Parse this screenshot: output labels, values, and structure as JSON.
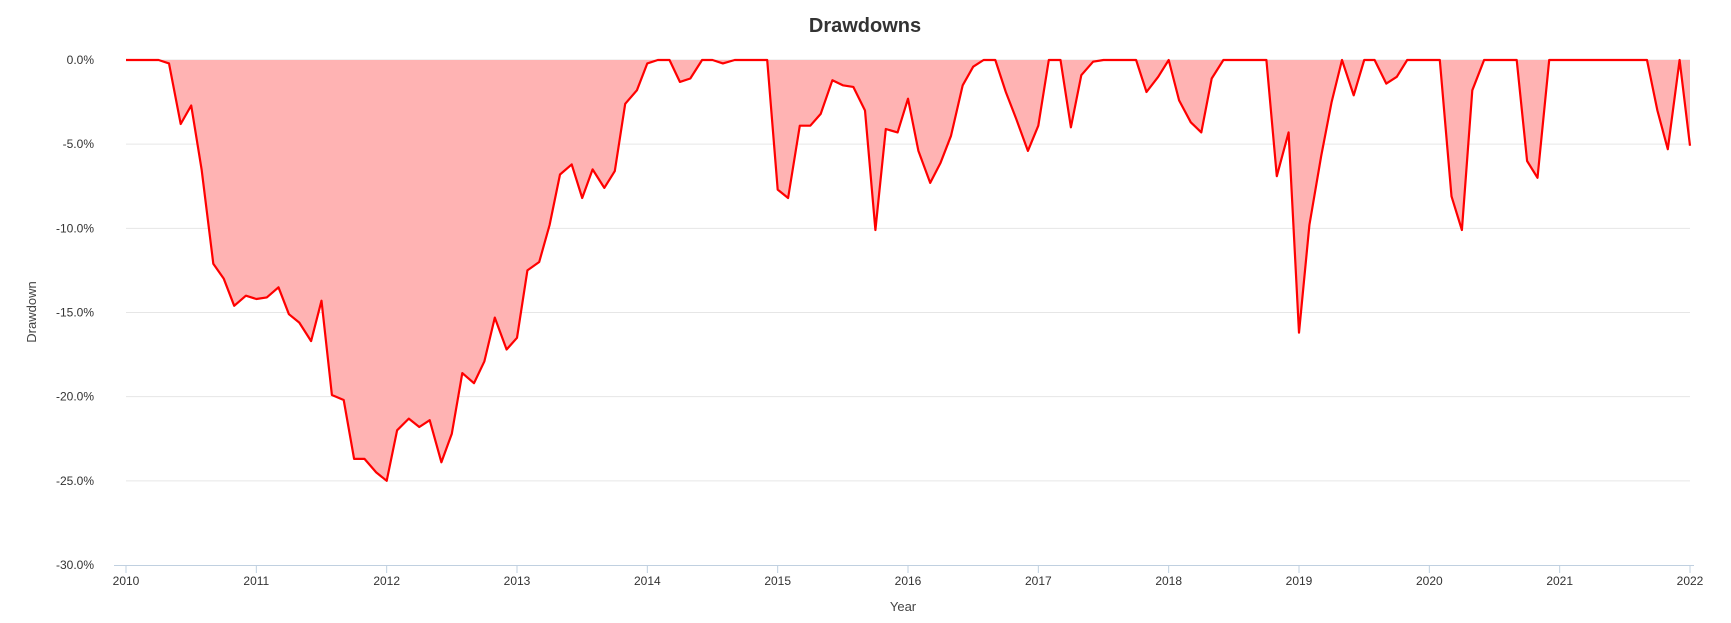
{
  "chart_data": {
    "type": "area",
    "title": "Drawdowns",
    "xlabel": "Year",
    "ylabel": "Drawdown",
    "ylim": [
      -30,
      0
    ],
    "xlim": [
      2010,
      2022
    ],
    "y_ticks": [
      "0.0%",
      "-5.0%",
      "-10.0%",
      "-15.0%",
      "-20.0%",
      "-25.0%",
      "-30.0%"
    ],
    "x_ticks": [
      "2010",
      "2011",
      "2012",
      "2013",
      "2014",
      "2015",
      "2016",
      "2017",
      "2018",
      "2019",
      "2020",
      "2021",
      "2022"
    ],
    "grid": true,
    "legend": "none",
    "line_color": "#ff0000",
    "fill_color": "#ffb3b3",
    "series": [
      {
        "x": [
          2010.0,
          2010.08,
          2010.17,
          2010.25,
          2010.33,
          2010.42,
          2010.5,
          2010.58,
          2010.67,
          2010.75,
          2010.83,
          2010.92,
          2011.0,
          2011.08,
          2011.17,
          2011.25,
          2011.33,
          2011.42,
          2011.5,
          2011.58,
          2011.67,
          2011.75,
          2011.83,
          2011.92,
          2012.0,
          2012.08,
          2012.17,
          2012.25,
          2012.33,
          2012.42,
          2012.5,
          2012.58,
          2012.67,
          2012.75,
          2012.83,
          2012.92,
          2013.0,
          2013.08,
          2013.17,
          2013.25,
          2013.33,
          2013.42,
          2013.5,
          2013.58,
          2013.67,
          2013.75,
          2013.83,
          2013.92,
          2014.0,
          2014.08,
          2014.17,
          2014.25,
          2014.33,
          2014.42,
          2014.5,
          2014.58,
          2014.67,
          2014.75,
          2014.83,
          2014.92,
          2015.0,
          2015.08,
          2015.17,
          2015.25,
          2015.33,
          2015.42,
          2015.5,
          2015.58,
          2015.67,
          2015.75,
          2015.83,
          2015.92,
          2016.0,
          2016.08,
          2016.17,
          2016.25,
          2016.33,
          2016.42,
          2016.5,
          2016.58,
          2016.67,
          2016.75,
          2016.83,
          2016.92,
          2017.0,
          2017.08,
          2017.17,
          2017.25,
          2017.33,
          2017.42,
          2017.5,
          2017.58,
          2017.67,
          2017.75,
          2017.83,
          2017.92,
          2018.0,
          2018.08,
          2018.17,
          2018.25,
          2018.33,
          2018.42,
          2018.5,
          2018.58,
          2018.67,
          2018.75,
          2018.83,
          2018.92,
          2019.0,
          2019.08,
          2019.17,
          2019.25,
          2019.33,
          2019.42,
          2019.5,
          2019.58,
          2019.67,
          2019.75,
          2019.83,
          2019.92,
          2020.0,
          2020.08,
          2020.17,
          2020.25,
          2020.33,
          2020.42,
          2020.5,
          2020.58,
          2020.67,
          2020.75,
          2020.83,
          2020.92,
          2021.0,
          2021.08,
          2021.17,
          2021.25,
          2021.33,
          2021.42,
          2021.5,
          2021.58,
          2021.67,
          2021.75,
          2021.83,
          2021.92,
          2022.0
        ],
        "y": [
          0.0,
          0.0,
          0.0,
          0.0,
          -0.2,
          -3.8,
          -2.7,
          -6.5,
          -12.1,
          -13.0,
          -14.6,
          -14.0,
          -14.2,
          -14.1,
          -13.5,
          -15.1,
          -15.6,
          -16.7,
          -14.3,
          -19.9,
          -20.2,
          -23.7,
          -23.7,
          -24.5,
          -25.0,
          -22.0,
          -21.3,
          -21.8,
          -21.4,
          -23.9,
          -22.2,
          -18.6,
          -19.2,
          -17.9,
          -15.3,
          -17.2,
          -16.5,
          -12.5,
          -12.0,
          -9.8,
          -6.8,
          -6.2,
          -8.2,
          -6.5,
          -7.6,
          -6.6,
          -2.6,
          -1.8,
          -0.2,
          0.0,
          0.0,
          -1.3,
          -1.1,
          0.0,
          0.0,
          -0.2,
          0.0,
          0.0,
          0.0,
          0.0,
          -7.7,
          -8.2,
          -3.9,
          -3.9,
          -3.2,
          -1.2,
          -1.5,
          -1.6,
          -3.0,
          -10.1,
          -4.1,
          -4.3,
          -2.3,
          -5.4,
          -7.3,
          -6.1,
          -4.5,
          -1.5,
          -0.4,
          0.0,
          0.0,
          -1.9,
          -3.5,
          -5.4,
          -3.9,
          0.0,
          0.0,
          -4.0,
          -0.9,
          -0.1,
          0.0,
          0.0,
          0.0,
          0.0,
          -1.9,
          -1.0,
          0.0,
          -2.4,
          -3.7,
          -4.3,
          -1.1,
          0.0,
          0.0,
          0.0,
          0.0,
          0.0,
          -6.9,
          -4.3,
          -16.2,
          -9.8,
          -5.7,
          -2.5,
          0.0,
          -2.1,
          0.0,
          0.0,
          -1.4,
          -1.0,
          0.0,
          0.0,
          0.0,
          0.0,
          -8.1,
          -10.1,
          -1.8,
          0.0,
          0.0,
          0.0,
          0.0,
          -6.0,
          -7.0,
          0.0,
          0.0,
          0.0,
          0.0,
          0.0,
          0.0,
          0.0,
          0.0,
          0.0,
          0.0,
          -3.0,
          -5.3,
          0.0,
          -5.1
        ]
      }
    ]
  }
}
